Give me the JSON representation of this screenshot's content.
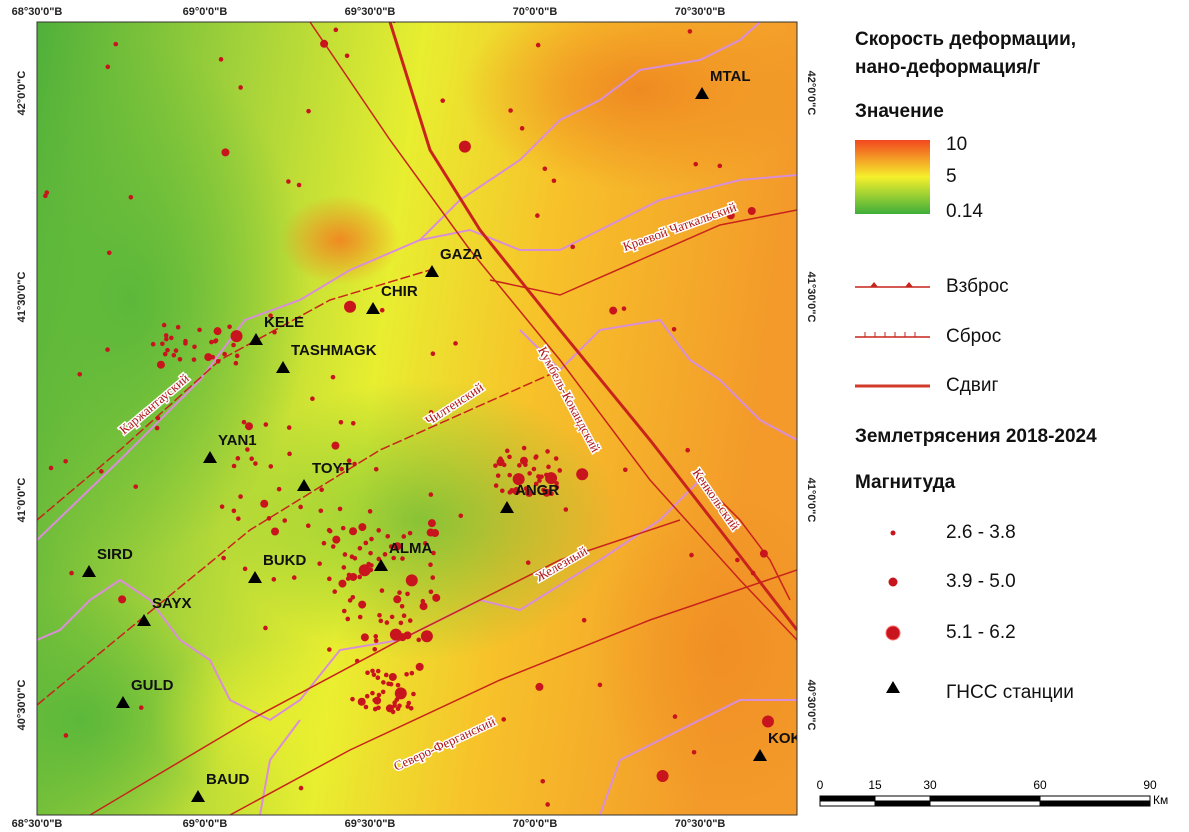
{
  "map": {
    "lon_labels": [
      "68°30'0\"В",
      "69°0'0\"В",
      "69°30'0\"В",
      "70°0'0\"В",
      "70°30'0\"В"
    ],
    "lat_labels": [
      "42°0'0\"С",
      "41°30'0\"С",
      "41°0'0\"С",
      "40°30'0\"С"
    ],
    "stations": [
      "MTAL",
      "GAZA",
      "CHIR",
      "KELE",
      "TASHMAGK",
      "YAN1",
      "TOYT",
      "ANGR",
      "SIRD",
      "BUKD",
      "ALMA",
      "SAYX",
      "GULD",
      "KOKA",
      "BAUD"
    ],
    "faults": [
      "Каржантауский",
      "Чилтенский",
      "Кумбель-Кокандский",
      "Краевой Чаткальский",
      "Кенкольский",
      "Железный",
      "Северо-Ферганский"
    ]
  },
  "legend": {
    "title": [
      "Скорость деформации,",
      "нано-деформация/г"
    ],
    "value_heading": "Значение",
    "ramp_ticks": [
      10,
      5,
      0.14
    ],
    "fault_types": [
      "Взброс",
      "Сброс",
      "Сдвиг"
    ],
    "quake_heading": "Землетрясения 2018-2024",
    "magnitude_heading": "Магнитуда",
    "magnitudes": [
      "2.6 - 3.8",
      "3.9 - 5.0",
      "5.1 - 6.2"
    ],
    "stations_label": "ГНСС станции"
  },
  "scale": {
    "ticks": [
      0,
      15,
      30,
      60,
      90
    ],
    "unit": "Км"
  }
}
